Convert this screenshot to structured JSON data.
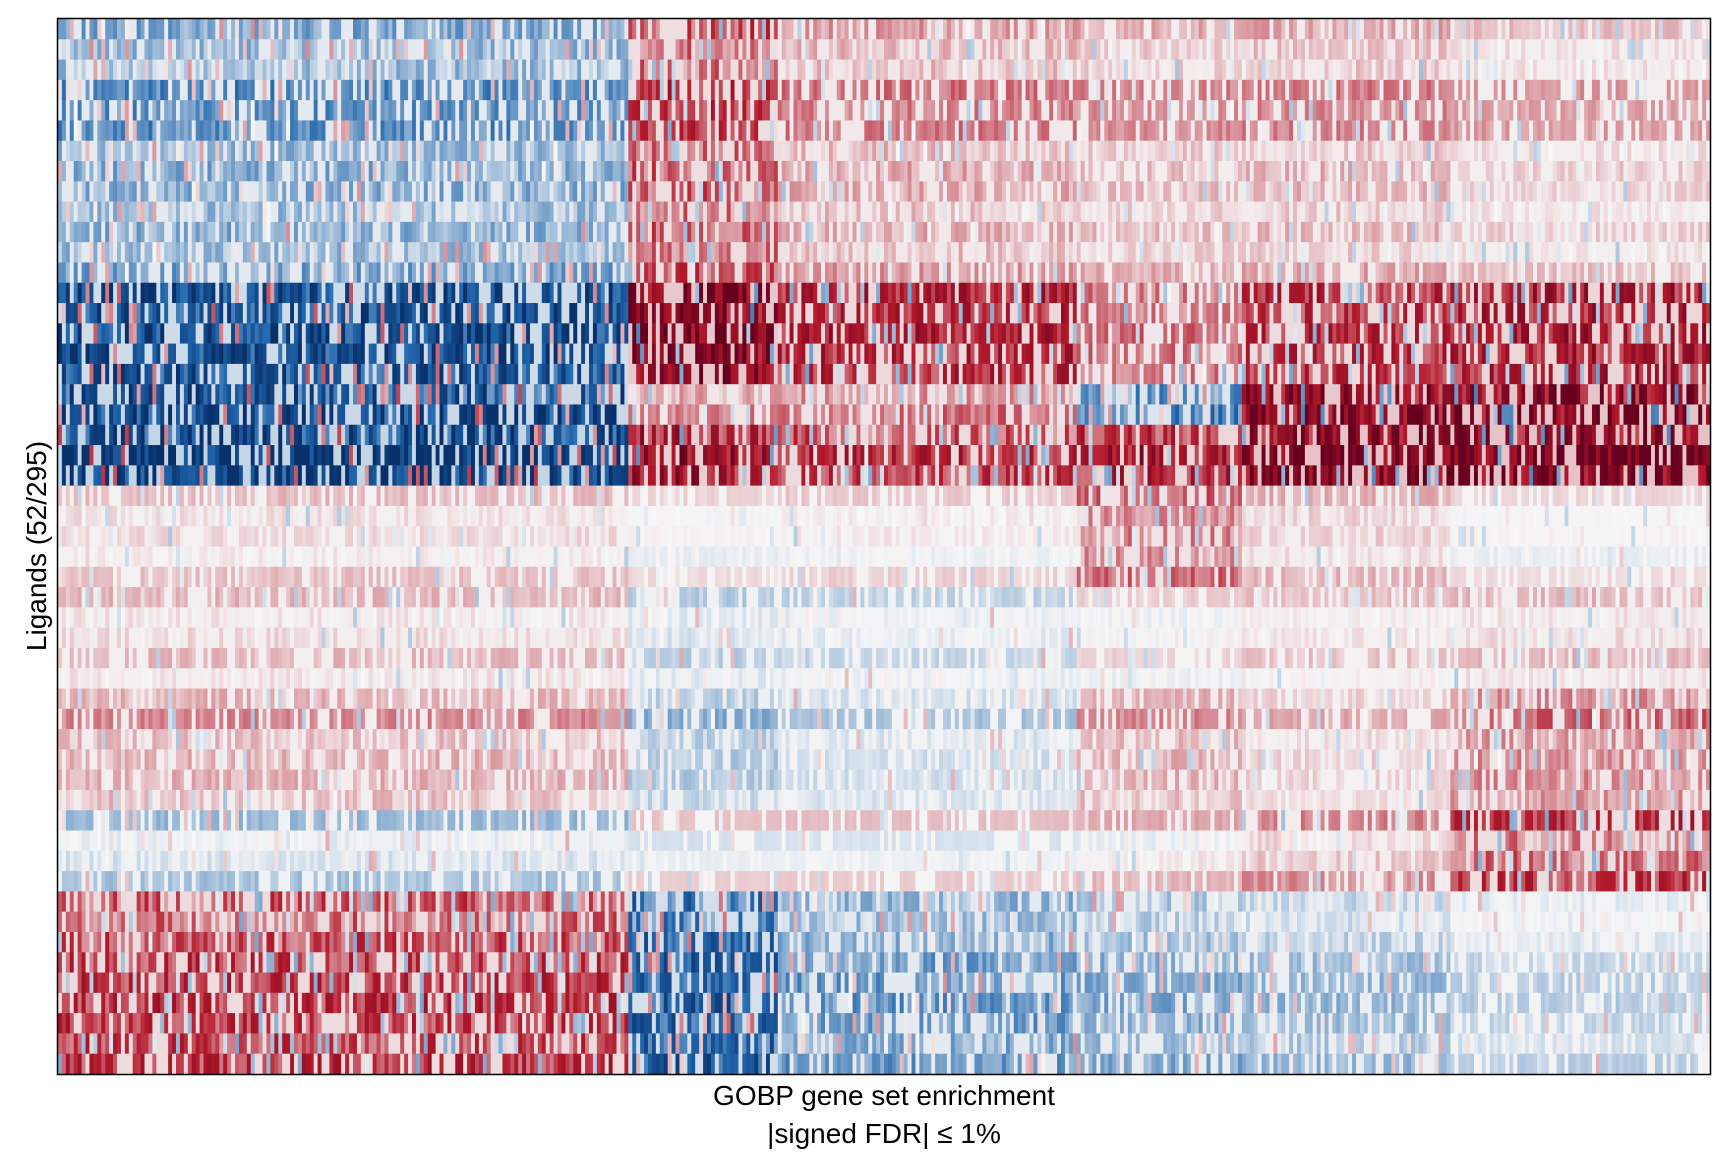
{
  "chart_data": {
    "type": "heatmap",
    "title": "",
    "xlabel": "GOBP gene set enrichment",
    "xlabel_line2": "|signed FDR| ≤ 1%",
    "ylabel": "Ligands (52/295)",
    "x_tick_labels": [],
    "y_tick_labels": [],
    "n_rows": 52,
    "colorscale": {
      "negative_strong": "#08306b",
      "negative": "#2166ac",
      "neutral": "#f7f7f7",
      "positive": "#b2182b",
      "positive_strong": "#67001f"
    },
    "value_range": [
      -1,
      1
    ],
    "column_blocks": [
      {
        "label": "A",
        "weight": 0.345
      },
      {
        "label": "B",
        "weight": 0.09
      },
      {
        "label": "C",
        "weight": 0.18
      },
      {
        "label": "D",
        "weight": 0.1
      },
      {
        "label": "E",
        "weight": 0.125
      },
      {
        "label": "F",
        "weight": 0.16
      }
    ],
    "row_blocks": [
      {
        "rows": 13,
        "levels": [
          -0.35,
          0.45,
          0.25,
          0.2,
          0.22,
          0.15
        ]
      },
      {
        "rows": 5,
        "levels": [
          -0.75,
          0.85,
          0.55,
          0.3,
          0.5,
          0.6
        ]
      },
      {
        "rows": 2,
        "levels": [
          -0.85,
          0.3,
          0.35,
          -0.5,
          0.85,
          0.9
        ]
      },
      {
        "rows": 3,
        "levels": [
          -0.95,
          0.7,
          0.5,
          0.6,
          0.95,
          0.95
        ]
      },
      {
        "rows": 5,
        "levels": [
          0.12,
          0.05,
          0.08,
          0.35,
          0.15,
          0.05
        ]
      },
      {
        "rows": 5,
        "levels": [
          0.15,
          -0.15,
          -0.12,
          0.08,
          0.12,
          0.15
        ]
      },
      {
        "rows": 6,
        "levels": [
          0.2,
          -0.2,
          -0.12,
          0.2,
          0.12,
          0.3
        ]
      },
      {
        "rows": 4,
        "levels": [
          -0.15,
          0.03,
          0.04,
          0.1,
          0.2,
          0.45
        ]
      },
      {
        "rows": 9,
        "levels": [
          0.5,
          -0.65,
          -0.35,
          -0.28,
          -0.22,
          -0.12
        ]
      }
    ]
  }
}
